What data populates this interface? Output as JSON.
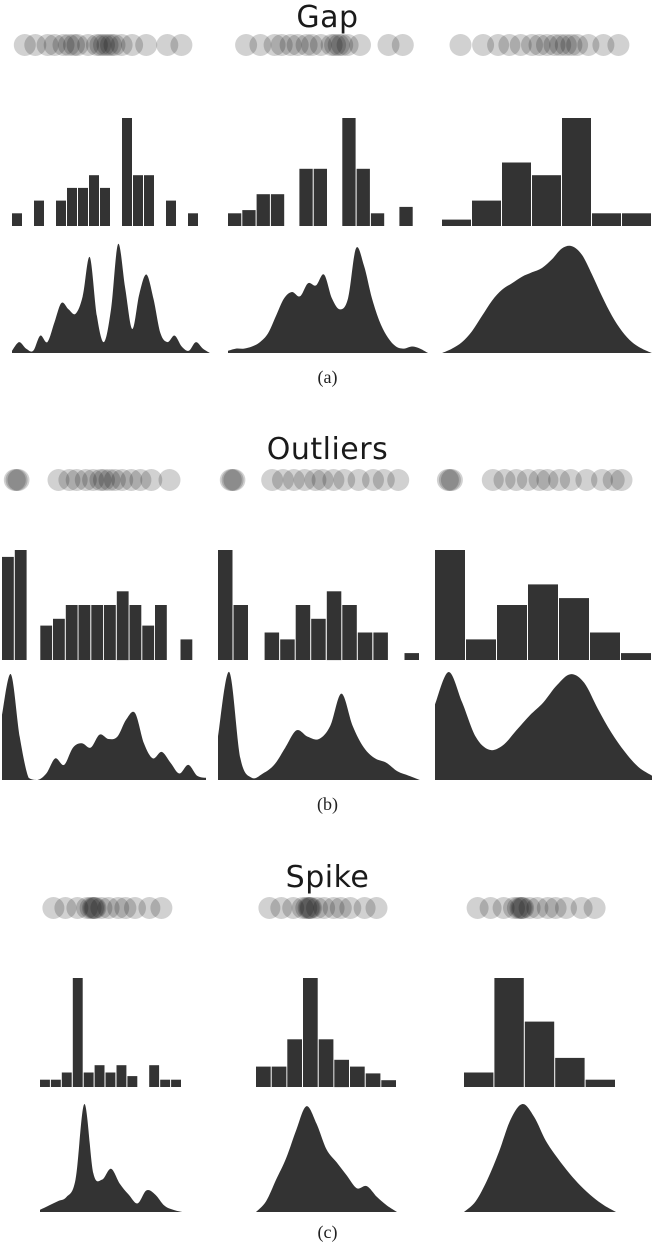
{
  "chart_data": [
    {
      "type": "strip-histogram-density",
      "title": "Gap",
      "caption": "(a)",
      "strip_color": "#000000",
      "fill_color": "#333333",
      "columns": [
        {
          "name": "",
          "points": [
            0.01,
            0.07,
            0.14,
            0.18,
            0.23,
            0.26,
            0.29,
            0.31,
            0.37,
            0.42,
            0.44,
            0.46,
            0.48,
            0.5,
            0.52,
            0.56,
            0.62,
            0.7,
            0.82,
            0.9
          ],
          "hist": [
            0.2,
            0,
            0.4,
            0,
            0.4,
            0.6,
            0.6,
            0.8,
            0.6,
            0,
            1.7,
            0.8,
            0.8,
            0,
            0.4,
            0,
            0.2,
            0
          ],
          "density": [
            0.02,
            0.1,
            0.04,
            0.02,
            0.16,
            0.1,
            0.28,
            0.46,
            0.4,
            0.36,
            0.52,
            0.88,
            0.34,
            0.1,
            0.4,
            1.0,
            0.6,
            0.22,
            0.54,
            0.72,
            0.5,
            0.18,
            0.1,
            0.16,
            0.06,
            0.02,
            0.1,
            0.04,
            0.0
          ]
        },
        {
          "name": "",
          "points": [
            0.04,
            0.12,
            0.2,
            0.24,
            0.29,
            0.33,
            0.38,
            0.41,
            0.46,
            0.52,
            0.54,
            0.56,
            0.58,
            0.61,
            0.68,
            0.84,
            0.92
          ],
          "hist": [
            0.2,
            0.25,
            0.5,
            0.5,
            0,
            0.9,
            0.9,
            0,
            1.7,
            0.9,
            0.2,
            0,
            0.3,
            0
          ],
          "density": [
            0.02,
            0.04,
            0.04,
            0.06,
            0.1,
            0.18,
            0.34,
            0.5,
            0.56,
            0.52,
            0.64,
            0.62,
            0.72,
            0.5,
            0.4,
            0.5,
            0.96,
            0.8,
            0.5,
            0.28,
            0.14,
            0.06,
            0.04,
            0.06,
            0.04,
            0.0
          ]
        },
        {
          "name": "",
          "points": [
            0.04,
            0.16,
            0.24,
            0.3,
            0.36,
            0.42,
            0.46,
            0.5,
            0.54,
            0.57,
            0.6,
            0.63,
            0.66,
            0.72,
            0.8,
            0.88
          ],
          "hist": [
            0.1,
            0.4,
            1.0,
            0.8,
            1.7,
            0.2,
            0.2
          ],
          "density": [
            0.0,
            0.04,
            0.1,
            0.2,
            0.34,
            0.48,
            0.58,
            0.64,
            0.7,
            0.74,
            0.78,
            0.86,
            0.96,
            0.98,
            0.9,
            0.72,
            0.52,
            0.34,
            0.2,
            0.1,
            0.04,
            0.0
          ]
        }
      ]
    },
    {
      "type": "strip-histogram-density",
      "title": "Outliers",
      "caption": "(b)",
      "strip_color": "#000000",
      "fill_color": "#333333",
      "columns": [
        {
          "name": "",
          "points": [
            0.01,
            0.02,
            0.03,
            0.25,
            0.31,
            0.35,
            0.4,
            0.44,
            0.48,
            0.5,
            0.53,
            0.56,
            0.6,
            0.65,
            0.7,
            0.76,
            0.86
          ],
          "hist": [
            1.5,
            1.6,
            0,
            0.5,
            0.6,
            0.8,
            0.8,
            0.8,
            0.8,
            1.0,
            0.8,
            0.5,
            0.8,
            0,
            0.3,
            0
          ],
          "density": [
            0.6,
            0.98,
            0.4,
            0.02,
            0.0,
            0.06,
            0.2,
            0.14,
            0.3,
            0.34,
            0.3,
            0.42,
            0.38,
            0.4,
            0.56,
            0.62,
            0.34,
            0.2,
            0.26,
            0.16,
            0.06,
            0.14,
            0.04,
            0.02
          ]
        },
        {
          "name": "",
          "points": [
            0.01,
            0.02,
            0.03,
            0.24,
            0.3,
            0.36,
            0.42,
            0.48,
            0.52,
            0.58,
            0.64,
            0.72,
            0.8,
            0.86,
            0.94
          ],
          "hist": [
            1.6,
            0.8,
            0,
            0.4,
            0.3,
            0.8,
            0.6,
            1.0,
            0.8,
            0.4,
            0.4,
            0,
            0.1
          ],
          "density": [
            0.4,
            1.0,
            0.2,
            0.02,
            0.06,
            0.14,
            0.3,
            0.46,
            0.4,
            0.38,
            0.5,
            0.8,
            0.5,
            0.3,
            0.2,
            0.16,
            0.08,
            0.04,
            0.0
          ]
        },
        {
          "name": "",
          "points": [
            0.01,
            0.02,
            0.03,
            0.24,
            0.3,
            0.36,
            0.42,
            0.48,
            0.52,
            0.58,
            0.64,
            0.72,
            0.8,
            0.86,
            0.9
          ],
          "hist": [
            1.6,
            0.3,
            0.8,
            1.1,
            0.9,
            0.4,
            0.1
          ],
          "density": [
            0.7,
            1.0,
            0.72,
            0.4,
            0.28,
            0.32,
            0.46,
            0.6,
            0.72,
            0.88,
            0.98,
            0.9,
            0.66,
            0.44,
            0.26,
            0.12,
            0.04
          ]
        }
      ]
    },
    {
      "type": "strip-histogram-density",
      "title": "Spike",
      "caption": "(c)",
      "strip_color": "#000000",
      "fill_color": "#333333",
      "columns": [
        {
          "name": "",
          "points": [
            0.02,
            0.12,
            0.22,
            0.3,
            0.33,
            0.35,
            0.36,
            0.37,
            0.42,
            0.48,
            0.56,
            0.62,
            0.7,
            0.82,
            0.92
          ],
          "hist": [
            0.1,
            0.1,
            0.2,
            1.5,
            0.2,
            0.3,
            0.2,
            0.3,
            0.15,
            0,
            0.3,
            0.1,
            0.1
          ],
          "density": [
            0.02,
            0.06,
            0.1,
            0.14,
            0.3,
            1.0,
            0.36,
            0.3,
            0.4,
            0.26,
            0.16,
            0.08,
            0.2,
            0.16,
            0.06,
            0.02,
            0.0
          ]
        },
        {
          "name": "",
          "points": [
            0.02,
            0.12,
            0.22,
            0.3,
            0.33,
            0.35,
            0.36,
            0.37,
            0.42,
            0.48,
            0.56,
            0.62,
            0.7,
            0.82,
            0.92
          ],
          "hist": [
            0.3,
            0.3,
            0.7,
            1.6,
            0.7,
            0.4,
            0.3,
            0.2,
            0.1
          ],
          "density": [
            0.0,
            0.1,
            0.3,
            0.5,
            0.76,
            0.98,
            0.82,
            0.58,
            0.46,
            0.34,
            0.22,
            0.24,
            0.14,
            0.06,
            0.0
          ]
        },
        {
          "name": "",
          "points": [
            0.02,
            0.12,
            0.22,
            0.3,
            0.33,
            0.35,
            0.36,
            0.37,
            0.42,
            0.48,
            0.56,
            0.62,
            0.7,
            0.82,
            0.92
          ],
          "hist": [
            0.2,
            1.5,
            0.9,
            0.4,
            0.1
          ],
          "density": [
            0.0,
            0.1,
            0.3,
            0.56,
            0.86,
            1.0,
            0.88,
            0.66,
            0.5,
            0.36,
            0.24,
            0.14,
            0.06,
            0.0
          ]
        }
      ]
    }
  ]
}
